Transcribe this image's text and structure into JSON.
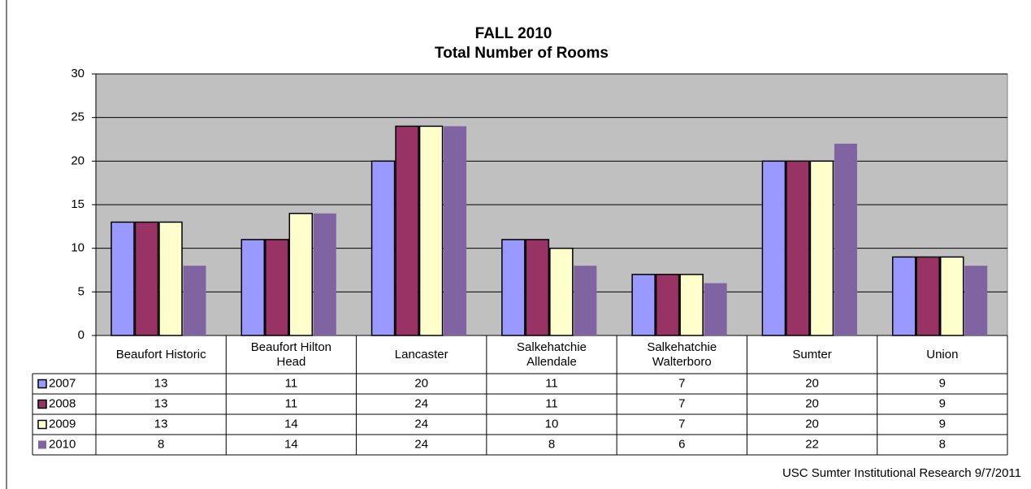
{
  "chart_data": {
    "type": "bar",
    "title": "FALL 2010",
    "subtitle": "Total Number of Rooms",
    "categories": [
      "Beaufort Historic",
      "Beaufort Hilton Head",
      "Lancaster",
      "Salkehatchie Allendale",
      "Salkehatchie Walterboro",
      "Sumter",
      "Union"
    ],
    "series": [
      {
        "name": "2007",
        "color": "#9999ff",
        "values": [
          13,
          11,
          20,
          11,
          7,
          20,
          9
        ]
      },
      {
        "name": "2008",
        "color": "#993366",
        "values": [
          13,
          11,
          24,
          11,
          7,
          20,
          9
        ]
      },
      {
        "name": "2009",
        "color": "#ffffcc",
        "values": [
          13,
          14,
          24,
          10,
          7,
          20,
          9
        ]
      },
      {
        "name": "2010",
        "color": "#8064a2",
        "values": [
          8,
          14,
          24,
          8,
          6,
          22,
          8
        ]
      }
    ],
    "ylim": [
      0,
      30
    ],
    "yticks": [
      0,
      5,
      10,
      15,
      20,
      25,
      30
    ],
    "grid": true,
    "footnote": "USC Sumter Institutional Research 9/7/2011"
  }
}
